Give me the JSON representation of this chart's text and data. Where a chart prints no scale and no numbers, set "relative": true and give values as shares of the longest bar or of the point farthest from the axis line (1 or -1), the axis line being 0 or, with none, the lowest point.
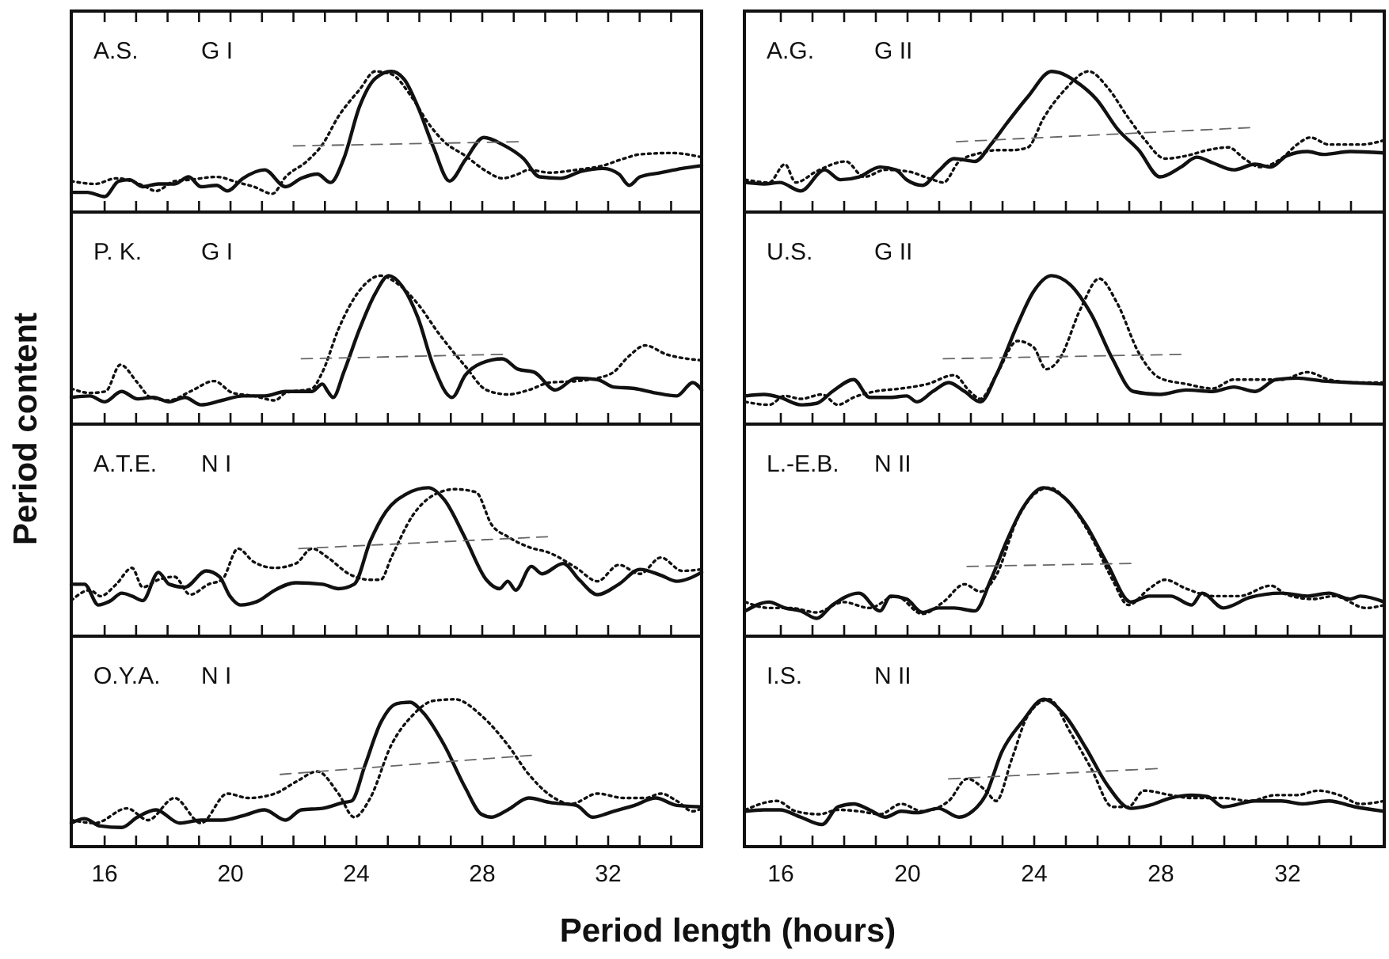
{
  "chart_data": [
    {
      "type": "line",
      "title": "A.S.",
      "subtitle": "G I",
      "ylabel": "Period content",
      "relative": true,
      "tick_labels": false,
      "xlim": [
        14.94,
        34.97
      ],
      "xticks": [
        16,
        {
          "value": 17,
          "label": null
        },
        {
          "value": 18,
          "label": null
        },
        {
          "value": 19,
          "label": null
        },
        20,
        {
          "value": 21,
          "label": null
        },
        {
          "value": 22,
          "label": null
        },
        {
          "value": 23,
          "label": null
        },
        24,
        {
          "value": 25,
          "label": null
        },
        {
          "value": 26,
          "label": null
        },
        {
          "value": 27,
          "label": null
        },
        28,
        {
          "value": 29,
          "label": null
        },
        {
          "value": 30,
          "label": null
        },
        {
          "value": 31,
          "label": null
        },
        32,
        {
          "value": 33,
          "label": null
        },
        {
          "value": 34,
          "label": null
        }
      ],
      "series": [
        {
          "color": "#111111",
          "line_style": "solid",
          "x": [
            14.94,
            15.45,
            16.0,
            16.45,
            16.79,
            17.21,
            17.71,
            18.22,
            18.67,
            19.06,
            19.56,
            19.9,
            20.4,
            21.08,
            21.75,
            22.25,
            22.76,
            23.18,
            23.6,
            24.1,
            24.6,
            25.11,
            25.53,
            25.95,
            26.45,
            26.96,
            27.46,
            28.05,
            28.64,
            29.31,
            29.82,
            30.49,
            31.16,
            31.83,
            32.34,
            32.67,
            33.01,
            33.68,
            34.35,
            34.97
          ],
          "values": [
            0.14,
            0.14,
            0.11,
            0.22,
            0.23,
            0.18,
            0.2,
            0.2,
            0.25,
            0.18,
            0.19,
            0.15,
            0.24,
            0.3,
            0.18,
            0.24,
            0.27,
            0.21,
            0.38,
            0.75,
            0.95,
            1.0,
            0.94,
            0.75,
            0.46,
            0.22,
            0.37,
            0.53,
            0.48,
            0.38,
            0.25,
            0.24,
            0.29,
            0.31,
            0.27,
            0.19,
            0.25,
            0.28,
            0.31,
            0.33
          ]
        },
        {
          "color": "#111111",
          "line_style": "dotted",
          "x": [
            14.94,
            15.7,
            16.37,
            17.21,
            17.63,
            18.22,
            18.72,
            19.56,
            20.24,
            20.74,
            21.33,
            21.75,
            22.42,
            22.92,
            23.43,
            24.1,
            24.6,
            25.11,
            25.78,
            26.29,
            26.79,
            27.46,
            28.13,
            28.64,
            29.14,
            29.48,
            30.15,
            30.99,
            31.83,
            32.5,
            33.01,
            34.02,
            34.97
          ],
          "values": [
            0.22,
            0.2,
            0.24,
            0.19,
            0.15,
            0.22,
            0.23,
            0.25,
            0.21,
            0.18,
            0.13,
            0.25,
            0.36,
            0.48,
            0.68,
            0.87,
            1.0,
            0.98,
            0.81,
            0.63,
            0.5,
            0.4,
            0.29,
            0.24,
            0.27,
            0.3,
            0.28,
            0.3,
            0.33,
            0.38,
            0.41,
            0.42,
            0.39
          ]
        },
        {
          "color": "#666666",
          "line_style": "dashed",
          "x": [
            22.0,
            29.14
          ],
          "values": [
            0.47,
            0.5
          ]
        }
      ]
    },
    {
      "type": "line",
      "title": "P. K.",
      "subtitle": "G I",
      "relative": true,
      "tick_labels": false,
      "xlim": [
        14.94,
        34.97
      ],
      "xticks": [
        16,
        {
          "value": 17,
          "label": null
        },
        {
          "value": 18,
          "label": null
        },
        {
          "value": 19,
          "label": null
        },
        20,
        {
          "value": 21,
          "label": null
        },
        {
          "value": 22,
          "label": null
        },
        {
          "value": 23,
          "label": null
        },
        24,
        {
          "value": 25,
          "label": null
        },
        {
          "value": 26,
          "label": null
        },
        {
          "value": 27,
          "label": null
        },
        28,
        {
          "value": 29,
          "label": null
        },
        {
          "value": 30,
          "label": null
        },
        {
          "value": 31,
          "label": null
        },
        32,
        {
          "value": 33,
          "label": null
        },
        {
          "value": 34,
          "label": null
        }
      ],
      "series": [
        {
          "color": "#111111",
          "line_style": "solid",
          "x": [
            14.94,
            15.53,
            16.0,
            16.54,
            17.04,
            17.55,
            18.05,
            18.55,
            19.06,
            19.73,
            20.4,
            21.08,
            21.75,
            22.59,
            22.92,
            23.09,
            23.26,
            23.6,
            24.1,
            24.6,
            25.03,
            25.45,
            25.95,
            26.45,
            27.04,
            27.46,
            27.97,
            28.64,
            29.14,
            29.65,
            30.32,
            30.99,
            31.66,
            32.17,
            32.84,
            33.51,
            34.18,
            34.69,
            34.97
          ],
          "values": [
            0.18,
            0.19,
            0.15,
            0.22,
            0.17,
            0.18,
            0.15,
            0.18,
            0.13,
            0.16,
            0.19,
            0.19,
            0.22,
            0.22,
            0.27,
            0.22,
            0.18,
            0.35,
            0.64,
            0.88,
            1.0,
            0.93,
            0.72,
            0.39,
            0.18,
            0.33,
            0.41,
            0.44,
            0.37,
            0.35,
            0.23,
            0.31,
            0.3,
            0.25,
            0.24,
            0.21,
            0.19,
            0.28,
            0.23
          ]
        },
        {
          "color": "#111111",
          "line_style": "dotted",
          "x": [
            14.94,
            15.53,
            16.03,
            16.5,
            17.04,
            17.46,
            18.05,
            18.72,
            19.48,
            20.07,
            20.74,
            21.41,
            21.75,
            22.59,
            22.92,
            23.43,
            24.1,
            24.77,
            25.28,
            25.95,
            26.62,
            27.46,
            28.13,
            28.81,
            29.48,
            30.15,
            30.99,
            31.66,
            32.17,
            32.67,
            33.18,
            33.85,
            34.52,
            34.97
          ],
          "values": [
            0.24,
            0.21,
            0.22,
            0.4,
            0.28,
            0.18,
            0.16,
            0.22,
            0.29,
            0.21,
            0.19,
            0.16,
            0.21,
            0.24,
            0.35,
            0.64,
            0.9,
            1.0,
            0.95,
            0.81,
            0.61,
            0.39,
            0.23,
            0.2,
            0.23,
            0.28,
            0.29,
            0.31,
            0.35,
            0.46,
            0.53,
            0.47,
            0.44,
            0.43
          ]
        },
        {
          "color": "#666666",
          "line_style": "dashed",
          "x": [
            22.25,
            28.64
          ],
          "values": [
            0.44,
            0.47
          ]
        }
      ]
    },
    {
      "type": "line",
      "title": "A.T.E.",
      "subtitle": "N I",
      "relative": true,
      "tick_labels": false,
      "xlim": [
        14.94,
        34.97
      ],
      "xticks": [
        16,
        {
          "value": 17,
          "label": null
        },
        {
          "value": 18,
          "label": null
        },
        {
          "value": 19,
          "label": null
        },
        20,
        {
          "value": 21,
          "label": null
        },
        {
          "value": 22,
          "label": null
        },
        {
          "value": 23,
          "label": null
        },
        24,
        {
          "value": 25,
          "label": null
        },
        {
          "value": 26,
          "label": null
        },
        {
          "value": 27,
          "label": null
        },
        28,
        {
          "value": 29,
          "label": null
        },
        {
          "value": 30,
          "label": null
        },
        {
          "value": 31,
          "label": null
        },
        32,
        {
          "value": 33,
          "label": null
        },
        {
          "value": 34,
          "label": null
        }
      ],
      "series": [
        {
          "color": "#111111",
          "line_style": "solid",
          "x": [
            14.94,
            15.36,
            15.8,
            16.2,
            16.54,
            16.87,
            17.21,
            17.71,
            18.05,
            18.55,
            19.23,
            19.65,
            19.98,
            20.32,
            20.91,
            21.41,
            22.08,
            22.92,
            23.43,
            23.93,
            24.44,
            24.94,
            25.61,
            26.29,
            26.79,
            27.46,
            28.13,
            28.55,
            28.81,
            29.06,
            29.56,
            29.9,
            30.57,
            31.08,
            31.66,
            32.34,
            33.01,
            33.68,
            34.18,
            34.97
          ],
          "values": [
            0.35,
            0.35,
            0.21,
            0.24,
            0.29,
            0.27,
            0.24,
            0.43,
            0.35,
            0.33,
            0.44,
            0.4,
            0.27,
            0.21,
            0.24,
            0.31,
            0.36,
            0.35,
            0.32,
            0.35,
            0.64,
            0.84,
            0.96,
            1.0,
            0.92,
            0.66,
            0.38,
            0.32,
            0.37,
            0.31,
            0.47,
            0.42,
            0.49,
            0.38,
            0.28,
            0.35,
            0.45,
            0.41,
            0.37,
            0.43
          ]
        },
        {
          "color": "#111111",
          "line_style": "dotted",
          "x": [
            14.94,
            15.53,
            15.87,
            16.37,
            16.87,
            17.21,
            17.71,
            18.22,
            18.72,
            19.31,
            19.73,
            20.24,
            20.74,
            21.41,
            22.08,
            22.59,
            23.09,
            23.76,
            24.44,
            24.77,
            25.11,
            25.78,
            26.45,
            27.13,
            27.8,
            28.3,
            28.81,
            29.48,
            30.15,
            30.99,
            31.66,
            32.34,
            33.01,
            33.68,
            34.35,
            34.97
          ],
          "values": [
            0.24,
            0.31,
            0.27,
            0.35,
            0.46,
            0.33,
            0.38,
            0.4,
            0.28,
            0.35,
            0.38,
            0.59,
            0.5,
            0.46,
            0.49,
            0.59,
            0.53,
            0.42,
            0.38,
            0.38,
            0.53,
            0.81,
            0.95,
            0.99,
            0.97,
            0.75,
            0.67,
            0.6,
            0.56,
            0.46,
            0.37,
            0.48,
            0.42,
            0.53,
            0.44,
            0.45
          ]
        },
        {
          "color": "#666666",
          "line_style": "dashed",
          "x": [
            22.17,
            30.07
          ],
          "values": [
            0.59,
            0.67
          ]
        }
      ]
    },
    {
      "type": "line",
      "title": "O.Y.A.",
      "subtitle": "N I",
      "xlabel": "Period length (hours)",
      "relative": true,
      "tick_labels": "x",
      "xlim": [
        14.94,
        34.97
      ],
      "xticks": [
        16,
        {
          "value": 17,
          "label": null
        },
        {
          "value": 18,
          "label": null
        },
        {
          "value": 19,
          "label": null
        },
        20,
        {
          "value": 21,
          "label": null
        },
        {
          "value": 22,
          "label": null
        },
        {
          "value": 23,
          "label": null
        },
        24,
        {
          "value": 25,
          "label": null
        },
        {
          "value": 26,
          "label": null
        },
        {
          "value": 27,
          "label": null
        },
        28,
        {
          "value": 29,
          "label": null
        },
        {
          "value": 30,
          "label": null
        },
        {
          "value": 31,
          "label": null
        },
        32,
        {
          "value": 33,
          "label": null
        },
        {
          "value": 34,
          "label": null
        }
      ],
      "series": [
        {
          "color": "#111111",
          "line_style": "solid",
          "x": [
            14.94,
            15.36,
            15.86,
            16.54,
            17.04,
            17.63,
            18.39,
            19.06,
            19.73,
            20.4,
            21.08,
            21.75,
            22.25,
            22.92,
            23.6,
            23.85,
            24.27,
            24.77,
            25.28,
            25.7,
            26.12,
            26.79,
            27.46,
            27.97,
            28.3,
            28.81,
            29.48,
            30.15,
            30.99,
            31.5,
            32.17,
            32.84,
            33.51,
            34.18,
            34.97
          ],
          "values": [
            0.16,
            0.19,
            0.14,
            0.13,
            0.2,
            0.25,
            0.16,
            0.18,
            0.18,
            0.21,
            0.25,
            0.18,
            0.25,
            0.26,
            0.3,
            0.31,
            0.55,
            0.84,
            0.97,
            0.98,
            0.91,
            0.69,
            0.4,
            0.22,
            0.2,
            0.25,
            0.33,
            0.3,
            0.28,
            0.2,
            0.24,
            0.28,
            0.33,
            0.28,
            0.27
          ]
        },
        {
          "color": "#111111",
          "line_style": "dotted",
          "x": [
            14.94,
            15.7,
            16.71,
            17.38,
            18.22,
            19.06,
            19.9,
            20.57,
            21.41,
            22.08,
            22.76,
            23.43,
            23.93,
            24.44,
            25.11,
            25.78,
            26.45,
            27.13,
            27.97,
            28.81,
            29.48,
            30.15,
            30.82,
            31.66,
            32.5,
            33.18,
            33.68,
            34.18,
            34.69,
            34.97
          ],
          "values": [
            0.18,
            0.16,
            0.26,
            0.18,
            0.33,
            0.16,
            0.36,
            0.33,
            0.36,
            0.44,
            0.51,
            0.36,
            0.2,
            0.33,
            0.69,
            0.89,
            0.99,
            1.0,
            0.89,
            0.69,
            0.49,
            0.35,
            0.29,
            0.36,
            0.33,
            0.33,
            0.36,
            0.31,
            0.24,
            0.26
          ]
        },
        {
          "color": "#666666",
          "line_style": "dashed",
          "x": [
            21.58,
            29.56
          ],
          "values": [
            0.49,
            0.62
          ]
        }
      ]
    },
    {
      "type": "line",
      "title": "A.G.",
      "subtitle": "G II",
      "relative": true,
      "tick_labels": false,
      "xlim": [
        14.85,
        35.05
      ],
      "xticks": [
        16,
        {
          "value": 17,
          "label": null
        },
        {
          "value": 18,
          "label": null
        },
        {
          "value": 19,
          "label": null
        },
        20,
        {
          "value": 21,
          "label": null
        },
        {
          "value": 22,
          "label": null
        },
        {
          "value": 23,
          "label": null
        },
        24,
        {
          "value": 25,
          "label": null
        },
        {
          "value": 26,
          "label": null
        },
        {
          "value": 27,
          "label": null
        },
        28,
        {
          "value": 29,
          "label": null
        },
        {
          "value": 30,
          "label": null
        },
        {
          "value": 31,
          "label": null
        },
        32,
        {
          "value": 33,
          "label": null
        },
        {
          "value": 34,
          "label": null
        }
      ],
      "series": [
        {
          "color": "#111111",
          "line_style": "solid",
          "x": [
            14.88,
            15.47,
            15.97,
            16.63,
            17.38,
            17.88,
            18.47,
            19.13,
            19.63,
            19.97,
            20.47,
            20.97,
            21.47,
            22.13,
            22.63,
            23.13,
            23.8,
            24.55,
            24.8,
            25.3,
            25.97,
            26.63,
            27.3,
            27.97,
            28.63,
            29.13,
            29.63,
            30.3,
            30.97,
            31.47,
            31.97,
            32.63,
            33.13,
            33.97,
            35.05
          ],
          "values": [
            0.21,
            0.2,
            0.21,
            0.15,
            0.3,
            0.23,
            0.25,
            0.32,
            0.3,
            0.23,
            0.19,
            0.29,
            0.38,
            0.36,
            0.48,
            0.63,
            0.82,
            1.0,
            0.99,
            0.93,
            0.8,
            0.59,
            0.44,
            0.25,
            0.32,
            0.39,
            0.35,
            0.3,
            0.34,
            0.32,
            0.4,
            0.43,
            0.41,
            0.43,
            0.42
          ]
        },
        {
          "color": "#111111",
          "line_style": "dotted",
          "x": [
            14.88,
            15.63,
            16.13,
            16.47,
            17.13,
            18.05,
            18.63,
            19.3,
            19.97,
            20.8,
            21.13,
            21.63,
            22.3,
            22.8,
            23.3,
            23.8,
            24.3,
            24.97,
            25.72,
            26.3,
            26.97,
            27.47,
            28.13,
            28.8,
            29.47,
            30.13,
            30.63,
            31.13,
            31.8,
            32.3,
            32.72,
            33.3,
            34.3,
            35.05
          ],
          "values": [
            0.23,
            0.21,
            0.34,
            0.21,
            0.29,
            0.36,
            0.25,
            0.3,
            0.29,
            0.23,
            0.21,
            0.36,
            0.42,
            0.44,
            0.44,
            0.46,
            0.67,
            0.87,
            1.0,
            0.89,
            0.67,
            0.52,
            0.38,
            0.4,
            0.44,
            0.46,
            0.38,
            0.32,
            0.38,
            0.48,
            0.53,
            0.48,
            0.48,
            0.51
          ]
        },
        {
          "color": "#666666",
          "line_style": "dashed",
          "x": [
            21.55,
            30.8
          ],
          "values": [
            0.5,
            0.6
          ]
        }
      ]
    },
    {
      "type": "line",
      "title": "U.S.",
      "subtitle": "G II",
      "relative": true,
      "tick_labels": false,
      "xlim": [
        14.85,
        35.05
      ],
      "xticks": [
        16,
        {
          "value": 17,
          "label": null
        },
        {
          "value": 18,
          "label": null
        },
        {
          "value": 19,
          "label": null
        },
        20,
        {
          "value": 21,
          "label": null
        },
        {
          "value": 22,
          "label": null
        },
        {
          "value": 23,
          "label": null
        },
        24,
        {
          "value": 25,
          "label": null
        },
        {
          "value": 26,
          "label": null
        },
        {
          "value": 27,
          "label": null
        },
        28,
        {
          "value": 29,
          "label": null
        },
        {
          "value": 30,
          "label": null
        },
        {
          "value": 31,
          "label": null
        },
        32,
        {
          "value": 33,
          "label": null
        },
        {
          "value": 34,
          "label": null
        }
      ],
      "series": [
        {
          "color": "#111111",
          "line_style": "solid",
          "x": [
            14.88,
            15.47,
            15.97,
            16.63,
            17.13,
            17.63,
            18.3,
            18.8,
            19.47,
            19.97,
            20.3,
            20.8,
            21.3,
            21.8,
            22.3,
            22.8,
            23.47,
            23.97,
            24.55,
            25.13,
            25.8,
            26.47,
            27.13,
            27.97,
            28.8,
            29.63,
            30.3,
            30.97,
            31.63,
            32.3,
            33.13,
            33.97,
            35.05
          ],
          "values": [
            0.19,
            0.2,
            0.18,
            0.13,
            0.14,
            0.22,
            0.3,
            0.18,
            0.18,
            0.19,
            0.15,
            0.22,
            0.28,
            0.22,
            0.15,
            0.33,
            0.67,
            0.89,
            1.0,
            0.94,
            0.74,
            0.44,
            0.22,
            0.2,
            0.23,
            0.22,
            0.25,
            0.22,
            0.3,
            0.31,
            0.29,
            0.28,
            0.27
          ]
        },
        {
          "color": "#111111",
          "line_style": "dotted",
          "x": [
            14.88,
            15.63,
            16.13,
            16.63,
            17.3,
            17.8,
            18.3,
            18.97,
            19.8,
            20.63,
            21.47,
            21.97,
            22.3,
            22.8,
            23.47,
            23.97,
            24.38,
            24.8,
            25.47,
            26.05,
            26.63,
            27.3,
            27.97,
            28.8,
            29.63,
            30.3,
            30.97,
            31.8,
            32.63,
            33.3,
            34.13,
            35.05
          ],
          "values": [
            0.15,
            0.13,
            0.19,
            0.17,
            0.2,
            0.13,
            0.18,
            0.22,
            0.24,
            0.27,
            0.33,
            0.22,
            0.17,
            0.33,
            0.56,
            0.52,
            0.37,
            0.44,
            0.78,
            0.98,
            0.81,
            0.48,
            0.31,
            0.27,
            0.24,
            0.3,
            0.3,
            0.3,
            0.35,
            0.3,
            0.28,
            0.28
          ]
        },
        {
          "color": "#666666",
          "line_style": "dashed",
          "x": [
            21.13,
            28.63
          ],
          "values": [
            0.44,
            0.47
          ]
        }
      ]
    },
    {
      "type": "line",
      "title": "L.-E.B.",
      "subtitle": "N II",
      "relative": true,
      "tick_labels": false,
      "xlim": [
        14.85,
        35.05
      ],
      "xticks": [
        16,
        {
          "value": 17,
          "label": null
        },
        {
          "value": 18,
          "label": null
        },
        {
          "value": 19,
          "label": null
        },
        20,
        {
          "value": 21,
          "label": null
        },
        {
          "value": 22,
          "label": null
        },
        {
          "value": 23,
          "label": null
        },
        24,
        {
          "value": 25,
          "label": null
        },
        {
          "value": 26,
          "label": null
        },
        {
          "value": 27,
          "label": null
        },
        28,
        {
          "value": 29,
          "label": null
        },
        {
          "value": 30,
          "label": null
        },
        {
          "value": 31,
          "label": null
        },
        32,
        {
          "value": 33,
          "label": null
        },
        {
          "value": 34,
          "label": null
        }
      ],
      "series": [
        {
          "color": "#111111",
          "line_style": "solid",
          "x": [
            14.88,
            15.63,
            16.13,
            16.63,
            17.13,
            17.63,
            18.47,
            19.13,
            19.47,
            19.97,
            20.47,
            20.97,
            21.47,
            22.13,
            22.63,
            23.13,
            23.63,
            24.3,
            24.97,
            25.63,
            26.3,
            27.05,
            27.63,
            28.3,
            28.97,
            29.3,
            29.97,
            30.8,
            31.8,
            32.63,
            33.3,
            33.97,
            34.3,
            35.05
          ],
          "values": [
            0.17,
            0.23,
            0.19,
            0.17,
            0.12,
            0.21,
            0.29,
            0.17,
            0.27,
            0.25,
            0.16,
            0.19,
            0.19,
            0.17,
            0.38,
            0.64,
            0.86,
            1.0,
            0.93,
            0.75,
            0.49,
            0.23,
            0.27,
            0.27,
            0.21,
            0.29,
            0.19,
            0.26,
            0.29,
            0.27,
            0.29,
            0.25,
            0.27,
            0.23
          ]
        },
        {
          "color": "#111111",
          "line_style": "dotted",
          "x": [
            14.88,
            15.63,
            16.3,
            17.13,
            17.97,
            18.8,
            19.63,
            20.47,
            21.13,
            21.8,
            22.3,
            22.8,
            23.47,
            23.97,
            24.47,
            25.13,
            25.8,
            26.47,
            26.97,
            27.63,
            28.13,
            28.8,
            29.63,
            30.47,
            31.47,
            31.97,
            32.8,
            33.47,
            34.47,
            35.05
          ],
          "values": [
            0.23,
            0.19,
            0.19,
            0.16,
            0.23,
            0.19,
            0.27,
            0.15,
            0.23,
            0.35,
            0.3,
            0.41,
            0.79,
            0.95,
            1.0,
            0.89,
            0.67,
            0.38,
            0.21,
            0.32,
            0.38,
            0.32,
            0.27,
            0.27,
            0.34,
            0.28,
            0.25,
            0.27,
            0.19,
            0.21
          ]
        },
        {
          "color": "#666666",
          "line_style": "dashed",
          "x": [
            21.88,
            27.05
          ],
          "values": [
            0.47,
            0.49
          ]
        }
      ]
    },
    {
      "type": "line",
      "title": "I.S.",
      "subtitle": "N II",
      "relative": true,
      "tick_labels": "x",
      "xlim": [
        14.85,
        35.05
      ],
      "xticks": [
        16,
        {
          "value": 17,
          "label": null
        },
        {
          "value": 18,
          "label": null
        },
        {
          "value": 19,
          "label": null
        },
        20,
        {
          "value": 21,
          "label": null
        },
        {
          "value": 22,
          "label": null
        },
        {
          "value": 23,
          "label": null
        },
        24,
        {
          "value": 25,
          "label": null
        },
        {
          "value": 26,
          "label": null
        },
        {
          "value": 27,
          "label": null
        },
        28,
        {
          "value": 29,
          "label": null
        },
        {
          "value": 30,
          "label": null
        },
        {
          "value": 31,
          "label": null
        },
        32,
        {
          "value": 33,
          "label": null
        },
        {
          "value": 34,
          "label": null
        }
      ],
      "series": [
        {
          "color": "#111111",
          "line_style": "solid",
          "x": [
            14.88,
            15.47,
            15.97,
            16.63,
            17.3,
            17.8,
            18.3,
            18.8,
            19.3,
            19.8,
            20.3,
            20.97,
            21.63,
            22.05,
            22.47,
            22.97,
            23.63,
            24.3,
            24.97,
            25.63,
            26.3,
            27.05,
            27.63,
            28.3,
            28.97,
            29.47,
            29.97,
            30.97,
            31.8,
            32.47,
            33.3,
            34.13,
            35.05
          ],
          "values": [
            0.24,
            0.25,
            0.25,
            0.2,
            0.15,
            0.27,
            0.29,
            0.25,
            0.2,
            0.24,
            0.23,
            0.26,
            0.2,
            0.24,
            0.35,
            0.64,
            0.85,
            1.0,
            0.89,
            0.67,
            0.42,
            0.26,
            0.28,
            0.33,
            0.35,
            0.34,
            0.27,
            0.31,
            0.31,
            0.29,
            0.31,
            0.27,
            0.24
          ]
        },
        {
          "color": "#111111",
          "line_style": "dotted",
          "x": [
            14.88,
            15.88,
            16.47,
            17.22,
            17.8,
            18.47,
            19.13,
            19.8,
            20.47,
            21.3,
            21.88,
            22.47,
            22.8,
            23.3,
            23.8,
            24.47,
            25.13,
            25.8,
            26.47,
            26.97,
            27.47,
            28.3,
            28.97,
            29.97,
            30.8,
            31.63,
            32.3,
            32.97,
            33.63,
            34.3,
            35.05
          ],
          "values": [
            0.25,
            0.31,
            0.24,
            0.22,
            0.25,
            0.24,
            0.22,
            0.29,
            0.24,
            0.31,
            0.46,
            0.38,
            0.31,
            0.6,
            0.89,
            1.0,
            0.78,
            0.53,
            0.27,
            0.27,
            0.38,
            0.35,
            0.33,
            0.33,
            0.31,
            0.35,
            0.35,
            0.38,
            0.35,
            0.29,
            0.31
          ]
        },
        {
          "color": "#666666",
          "line_style": "dashed",
          "x": [
            21.3,
            27.88
          ],
          "values": [
            0.46,
            0.53
          ]
        }
      ]
    }
  ]
}
